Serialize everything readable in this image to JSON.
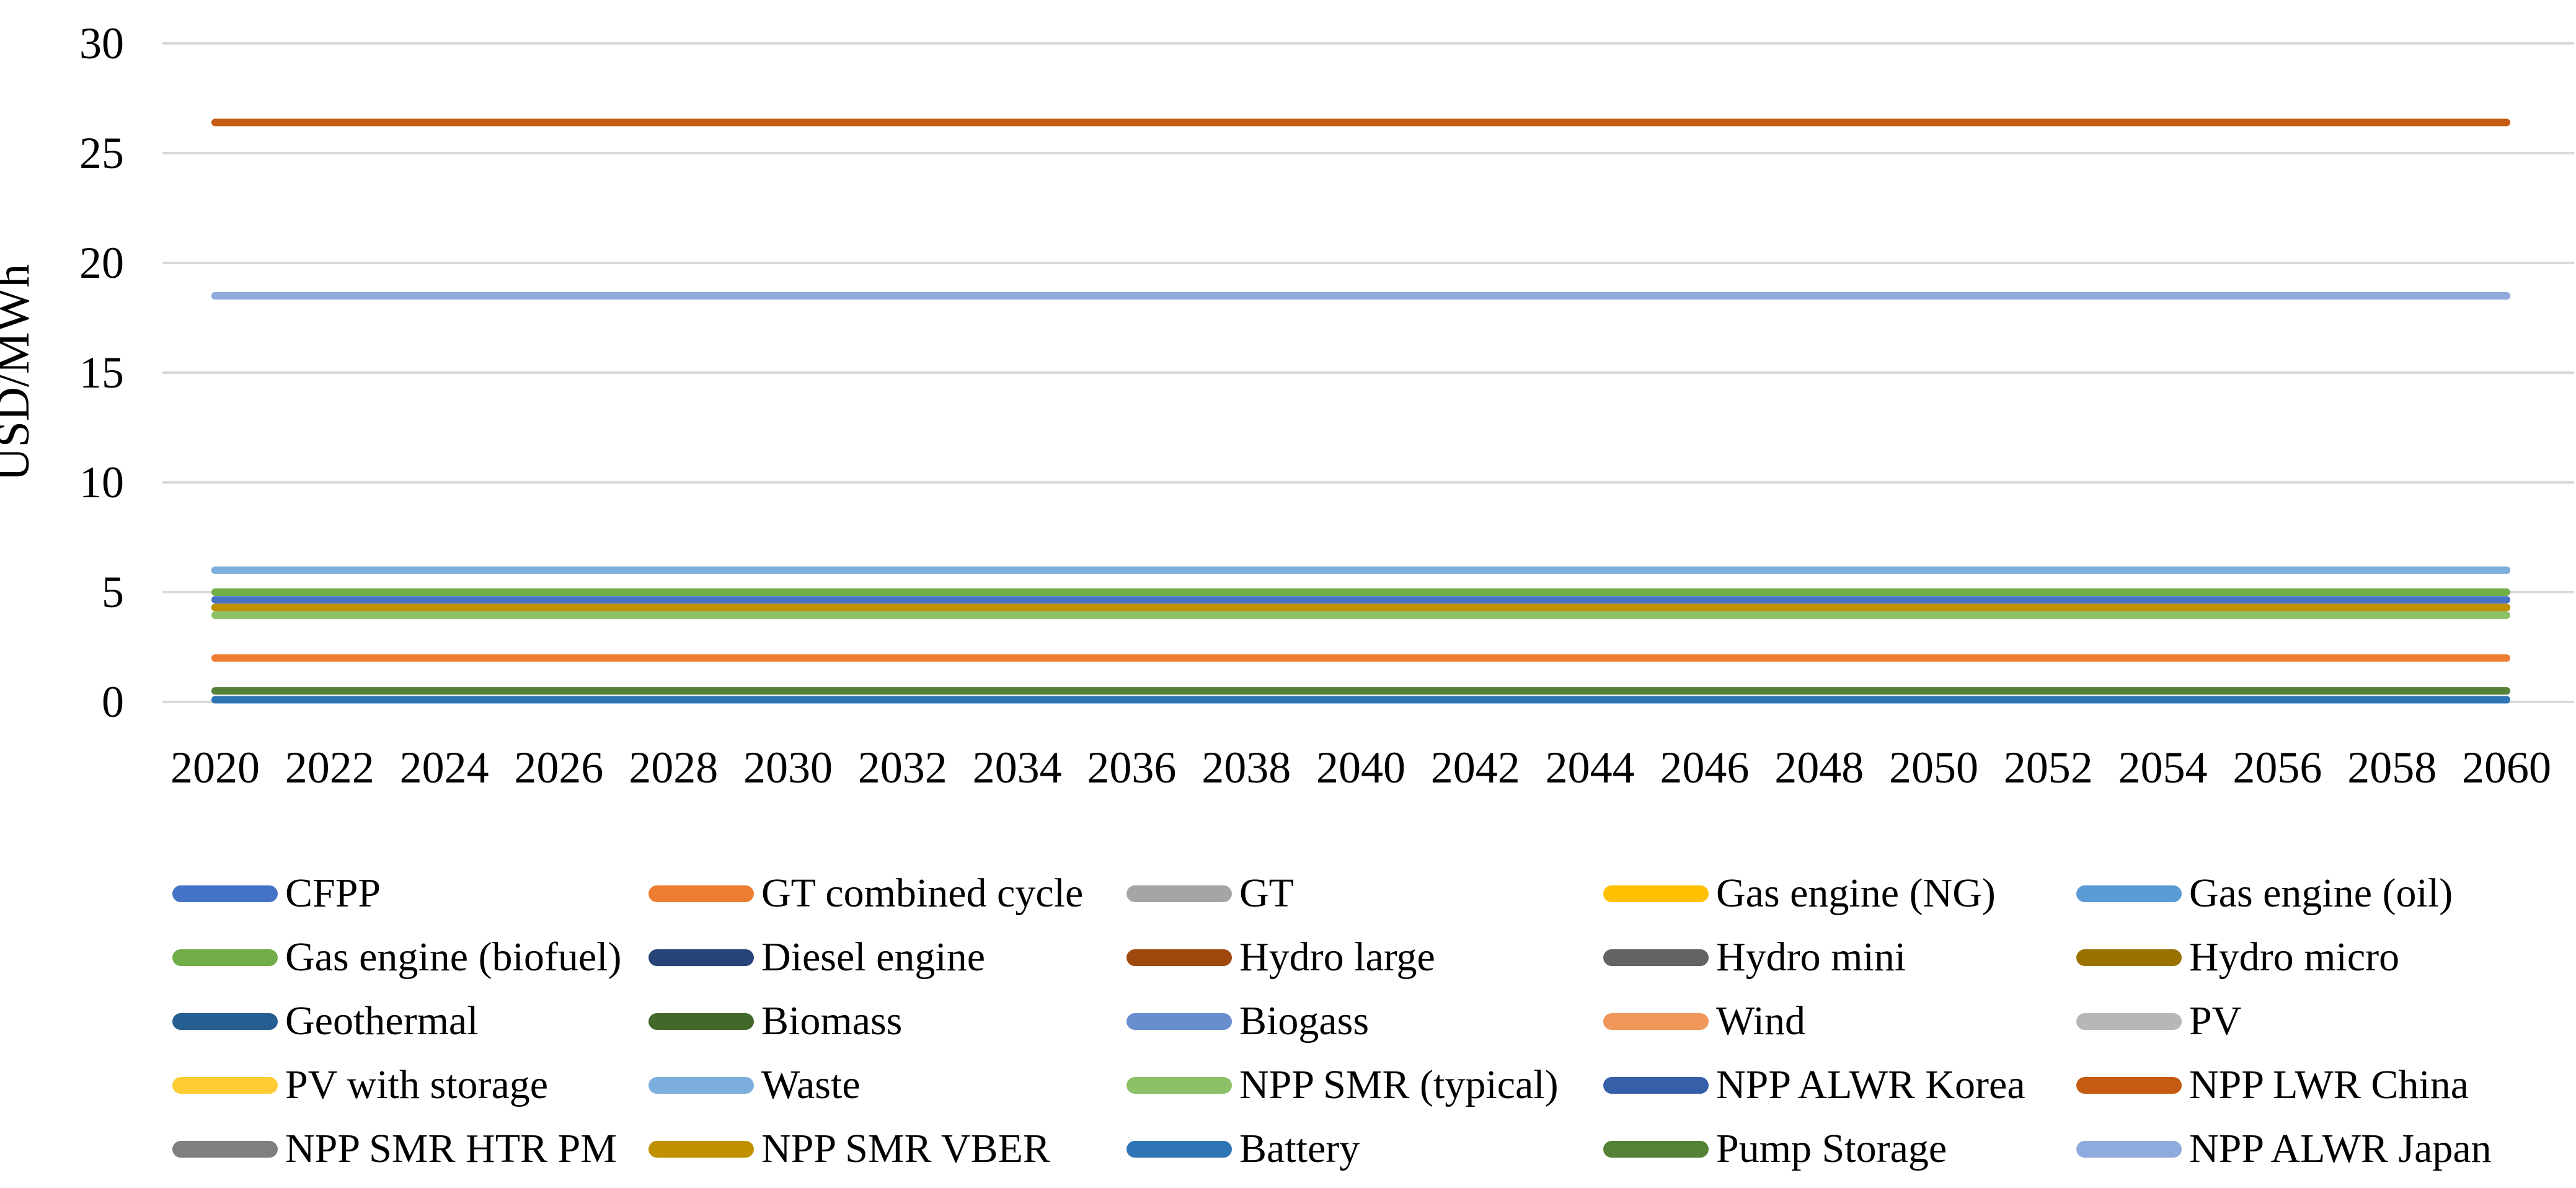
{
  "chart_data": {
    "type": "line",
    "title": "",
    "xlabel": "",
    "ylabel": "USD/MWh",
    "ylim": [
      0,
      30
    ],
    "yticks": [
      0,
      5,
      10,
      15,
      20,
      25,
      30
    ],
    "x_categories": [
      "2020",
      "2022",
      "2024",
      "2026",
      "2028",
      "2030",
      "2032",
      "2034",
      "2036",
      "2038",
      "2040",
      "2042",
      "2044",
      "2046",
      "2048",
      "2050",
      "2052",
      "2054",
      "2056",
      "2058",
      "2060"
    ],
    "grid": true,
    "legend_position": "bottom",
    "note": "Every series is a constant (flat) horizontal line across all years 2020-2060; 'value' is that constant USD/MWh level read from the axis.",
    "series": [
      {
        "name": "CFPP",
        "color": "#4472C4",
        "value": 4.65
      },
      {
        "name": "GT combined cycle",
        "color": "#ED7D31",
        "value": 2.0
      },
      {
        "name": "GT",
        "color": "#A5A5A5",
        "value": 4.3
      },
      {
        "name": "Gas engine (NG)",
        "color": "#FFC000",
        "value": 4.3
      },
      {
        "name": "Gas engine (oil)",
        "color": "#5B9BD5",
        "value": 6.0
      },
      {
        "name": "Gas engine (biofuel)",
        "color": "#70AD47",
        "value": 5.0
      },
      {
        "name": "Diesel engine",
        "color": "#264478",
        "value": 4.3
      },
      {
        "name": "Hydro large",
        "color": "#9E480E",
        "value": 26.4
      },
      {
        "name": "Hydro mini",
        "color": "#636363",
        "value": 4.3
      },
      {
        "name": "Hydro micro",
        "color": "#997300",
        "value": 4.3
      },
      {
        "name": "Geothermal",
        "color": "#255E91",
        "value": 0.1
      },
      {
        "name": "Biomass",
        "color": "#43682B",
        "value": 0.5
      },
      {
        "name": "Biogass",
        "color": "#698ED0",
        "value": 6.0
      },
      {
        "name": "Wind",
        "color": "#F1975A",
        "value": 4.3
      },
      {
        "name": "PV",
        "color": "#B7B7B7",
        "value": 0.5
      },
      {
        "name": "PV with storage",
        "color": "#FFCD33",
        "value": 6.0
      },
      {
        "name": "Waste",
        "color": "#7CAFDD",
        "value": 6.0
      },
      {
        "name": "NPP SMR (typical)",
        "color": "#8CC168",
        "value": 3.95
      },
      {
        "name": "NPP ALWR Korea",
        "color": "#3560A8",
        "value": 18.5
      },
      {
        "name": "NPP LWR China",
        "color": "#C55A11",
        "value": 26.4
      },
      {
        "name": "NPP SMR HTR PM",
        "color": "#7F7F7F",
        "value": 4.3
      },
      {
        "name": "NPP SMR VBER",
        "color": "#BF9000",
        "value": 4.3
      },
      {
        "name": "Battery",
        "color": "#2E75B6",
        "value": 0.1
      },
      {
        "name": "Pump Storage",
        "color": "#538135",
        "value": 0.5
      },
      {
        "name": "NPP ALWR Japan",
        "color": "#8FAADC",
        "value": 18.5
      }
    ]
  },
  "colors": {
    "gridline": "#D9D9D9",
    "text": "#000000",
    "background": "#FFFFFF"
  }
}
